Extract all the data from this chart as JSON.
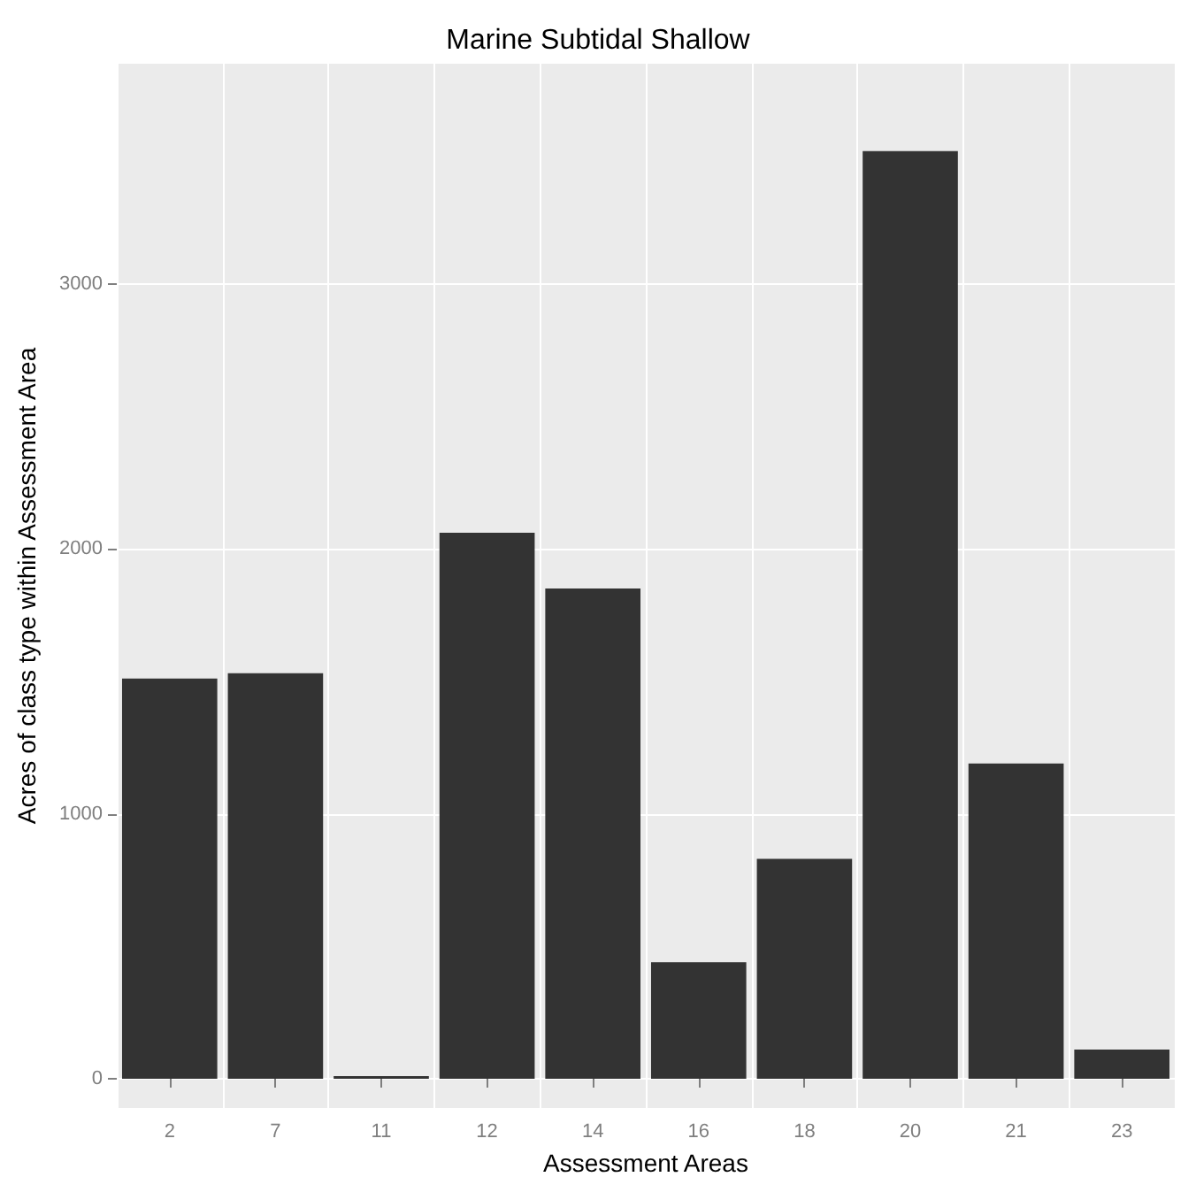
{
  "chart_data": {
    "type": "bar",
    "title": "Marine Subtidal Shallow",
    "xlabel": "Assessment Areas",
    "ylabel": "Acres of class type within Assessment Area",
    "categories": [
      "2",
      "7",
      "11",
      "12",
      "14",
      "16",
      "18",
      "20",
      "21",
      "23"
    ],
    "values": [
      1510,
      1530,
      10,
      2060,
      1850,
      440,
      830,
      3500,
      1190,
      110
    ],
    "color": "#333333",
    "ylim": [
      -110,
      3830
    ],
    "yticks": [
      0,
      1000,
      2000,
      3000
    ],
    "grid": true
  }
}
